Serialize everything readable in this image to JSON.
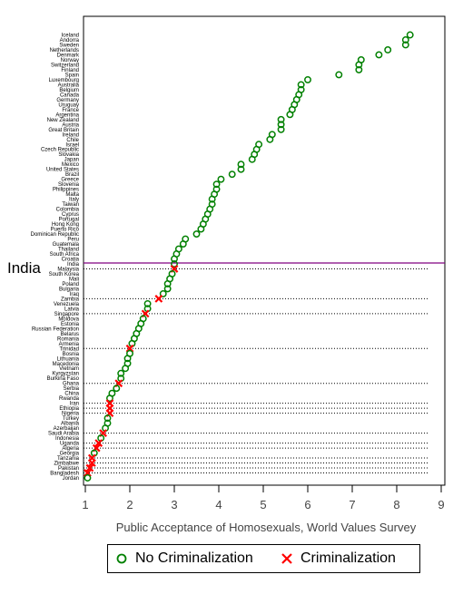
{
  "chart_data": {
    "type": "scatter",
    "xlabel": "Public Acceptance of Homosexuals, World Values Survey",
    "xlim": [
      1,
      9
    ],
    "x_ticks": [
      "1",
      "2",
      "3",
      "4",
      "5",
      "6",
      "7",
      "8",
      "9"
    ],
    "highlight_label": "India",
    "legend_position": "bottom",
    "grid": false,
    "colors": {
      "no_criminalization": "#008000",
      "criminalization": "#ff0000",
      "highlight_line": "#800080"
    },
    "series": [
      {
        "name": "No Criminalization",
        "marker": "circle"
      },
      {
        "name": "Criminalization",
        "marker": "x"
      }
    ],
    "countries": [
      {
        "name": "Iceland",
        "value": 8.3,
        "criminalization": false
      },
      {
        "name": "Andorra",
        "value": 8.2,
        "criminalization": false
      },
      {
        "name": "Sweden",
        "value": 8.2,
        "criminalization": false
      },
      {
        "name": "Netherlands",
        "value": 7.8,
        "criminalization": false
      },
      {
        "name": "Denmark",
        "value": 7.6,
        "criminalization": false
      },
      {
        "name": "Norway",
        "value": 7.2,
        "criminalization": false
      },
      {
        "name": "Switzerland",
        "value": 7.15,
        "criminalization": false
      },
      {
        "name": "Finland",
        "value": 7.15,
        "criminalization": false
      },
      {
        "name": "Spain",
        "value": 6.7,
        "criminalization": false
      },
      {
        "name": "Luxembourg",
        "value": 6.0,
        "criminalization": false
      },
      {
        "name": "Australia",
        "value": 5.85,
        "criminalization": false
      },
      {
        "name": "Belgium",
        "value": 5.85,
        "criminalization": false
      },
      {
        "name": "Canada",
        "value": 5.8,
        "criminalization": false
      },
      {
        "name": "Germany",
        "value": 5.75,
        "criminalization": false
      },
      {
        "name": "Uruguay",
        "value": 5.7,
        "criminalization": false
      },
      {
        "name": "France",
        "value": 5.65,
        "criminalization": false
      },
      {
        "name": "Argentina",
        "value": 5.6,
        "criminalization": false
      },
      {
        "name": "New Zealand",
        "value": 5.4,
        "criminalization": false
      },
      {
        "name": "Austria",
        "value": 5.4,
        "criminalization": false
      },
      {
        "name": "Great Britain",
        "value": 5.4,
        "criminalization": false
      },
      {
        "name": "Ireland",
        "value": 5.2,
        "criminalization": false
      },
      {
        "name": "Chile",
        "value": 5.15,
        "criminalization": false
      },
      {
        "name": "Israel",
        "value": 4.9,
        "criminalization": false
      },
      {
        "name": "Czech Republic",
        "value": 4.85,
        "criminalization": false
      },
      {
        "name": "Slovakia",
        "value": 4.8,
        "criminalization": false
      },
      {
        "name": "Japan",
        "value": 4.75,
        "criminalization": false
      },
      {
        "name": "Mexico",
        "value": 4.5,
        "criminalization": false
      },
      {
        "name": "United States",
        "value": 4.5,
        "criminalization": false
      },
      {
        "name": "Brazil",
        "value": 4.3,
        "criminalization": false
      },
      {
        "name": "Greece",
        "value": 4.05,
        "criminalization": false
      },
      {
        "name": "Slovenia",
        "value": 3.95,
        "criminalization": false
      },
      {
        "name": "Philippines",
        "value": 3.95,
        "criminalization": false
      },
      {
        "name": "Malta",
        "value": 3.9,
        "criminalization": false
      },
      {
        "name": "Italy",
        "value": 3.85,
        "criminalization": false
      },
      {
        "name": "Taiwan",
        "value": 3.85,
        "criminalization": false
      },
      {
        "name": "Colombia",
        "value": 3.8,
        "criminalization": false
      },
      {
        "name": "Cyprus",
        "value": 3.75,
        "criminalization": false
      },
      {
        "name": "Portugal",
        "value": 3.7,
        "criminalization": false
      },
      {
        "name": "Hong Kong",
        "value": 3.65,
        "criminalization": false
      },
      {
        "name": "Puerto Rico",
        "value": 3.6,
        "criminalization": false
      },
      {
        "name": "Dominican Republic",
        "value": 3.5,
        "criminalization": false
      },
      {
        "name": "Peru",
        "value": 3.25,
        "criminalization": false
      },
      {
        "name": "Guatemala",
        "value": 3.2,
        "criminalization": false
      },
      {
        "name": "Thailand",
        "value": 3.1,
        "criminalization": false
      },
      {
        "name": "South Africa",
        "value": 3.05,
        "criminalization": false
      },
      {
        "name": "Croatia",
        "value": 3.0,
        "criminalization": false
      },
      {
        "name": "India",
        "value": 3.0,
        "criminalization": false
      },
      {
        "name": "Malaysia",
        "value": 3.0,
        "criminalization": true
      },
      {
        "name": "South Korea",
        "value": 2.95,
        "criminalization": false
      },
      {
        "name": "Mali",
        "value": 2.9,
        "criminalization": false
      },
      {
        "name": "Poland",
        "value": 2.85,
        "criminalization": false
      },
      {
        "name": "Bulgaria",
        "value": 2.85,
        "criminalization": false
      },
      {
        "name": "Iraq",
        "value": 2.75,
        "criminalization": false
      },
      {
        "name": "Zambia",
        "value": 2.65,
        "criminalization": true
      },
      {
        "name": "Venezuela",
        "value": 2.4,
        "criminalization": false
      },
      {
        "name": "Latvia",
        "value": 2.4,
        "criminalization": false
      },
      {
        "name": "Singapore",
        "value": 2.35,
        "criminalization": true
      },
      {
        "name": "Moldova",
        "value": 2.3,
        "criminalization": false
      },
      {
        "name": "Estonia",
        "value": 2.25,
        "criminalization": false
      },
      {
        "name": "Russian Federation",
        "value": 2.2,
        "criminalization": false
      },
      {
        "name": "Belarus",
        "value": 2.15,
        "criminalization": false
      },
      {
        "name": "Romania",
        "value": 2.1,
        "criminalization": false
      },
      {
        "name": "Armenia",
        "value": 2.05,
        "criminalization": false
      },
      {
        "name": "Trinidad",
        "value": 2.0,
        "criminalization": true
      },
      {
        "name": "Bosnia",
        "value": 2.0,
        "criminalization": false
      },
      {
        "name": "Lithuania",
        "value": 1.95,
        "criminalization": false
      },
      {
        "name": "Macedonia",
        "value": 1.95,
        "criminalization": false
      },
      {
        "name": "Vietnam",
        "value": 1.9,
        "criminalization": false
      },
      {
        "name": "Kyrgyzstan",
        "value": 1.8,
        "criminalization": false
      },
      {
        "name": "Burkina Faso",
        "value": 1.8,
        "criminalization": false
      },
      {
        "name": "Ghana",
        "value": 1.75,
        "criminalization": true
      },
      {
        "name": "Serbia",
        "value": 1.7,
        "criminalization": false
      },
      {
        "name": "China",
        "value": 1.6,
        "criminalization": false
      },
      {
        "name": "Rwanda",
        "value": 1.55,
        "criminalization": false
      },
      {
        "name": "Iran",
        "value": 1.55,
        "criminalization": true
      },
      {
        "name": "Ethiopia",
        "value": 1.55,
        "criminalization": true
      },
      {
        "name": "Nigeria",
        "value": 1.55,
        "criminalization": true
      },
      {
        "name": "Turkey",
        "value": 1.5,
        "criminalization": false
      },
      {
        "name": "Albania",
        "value": 1.5,
        "criminalization": false
      },
      {
        "name": "Azerbaijan",
        "value": 1.45,
        "criminalization": false
      },
      {
        "name": "Saudi Arabia",
        "value": 1.4,
        "criminalization": true
      },
      {
        "name": "Indonesia",
        "value": 1.35,
        "criminalization": false
      },
      {
        "name": "Uganda",
        "value": 1.3,
        "criminalization": true
      },
      {
        "name": "Algeria",
        "value": 1.25,
        "criminalization": true
      },
      {
        "name": "Georgia",
        "value": 1.2,
        "criminalization": false
      },
      {
        "name": "Tanzania",
        "value": 1.15,
        "criminalization": true
      },
      {
        "name": "Zimbabwe",
        "value": 1.15,
        "criminalization": true
      },
      {
        "name": "Pakistan",
        "value": 1.1,
        "criminalization": true
      },
      {
        "name": "Bangladesh",
        "value": 1.05,
        "criminalization": true
      },
      {
        "name": "Jordan",
        "value": 1.05,
        "criminalization": false
      }
    ]
  },
  "legend": {
    "no_crim_label": "No Criminalization",
    "crim_label": "Criminalization"
  }
}
